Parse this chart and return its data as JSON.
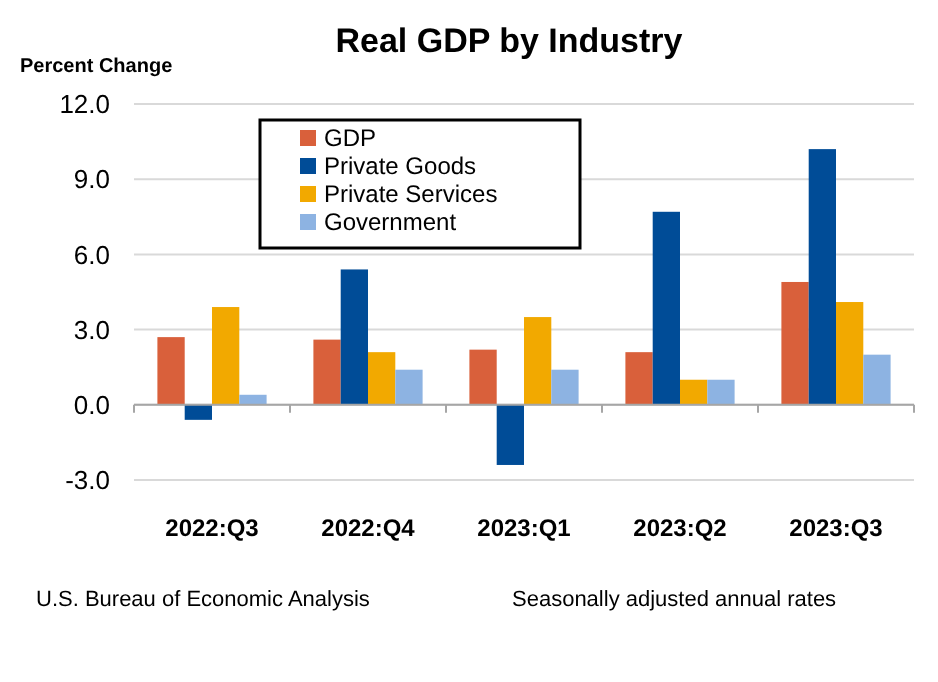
{
  "chart_data": {
    "type": "bar",
    "title": "Real GDP by Industry",
    "ylabel": "Percent Change",
    "categories": [
      "2022:Q3",
      "2022:Q4",
      "2023:Q1",
      "2023:Q2",
      "2023:Q3"
    ],
    "series": [
      {
        "name": "GDP",
        "color": "#d9603b",
        "values": [
          2.7,
          2.6,
          2.2,
          2.1,
          4.9
        ]
      },
      {
        "name": "Private Goods",
        "color": "#004c97",
        "values": [
          -0.6,
          5.4,
          -2.4,
          7.7,
          10.2
        ]
      },
      {
        "name": "Private Services",
        "color": "#f2a900",
        "values": [
          3.9,
          2.1,
          3.5,
          1.0,
          4.1
        ]
      },
      {
        "name": "Government",
        "color": "#8db3e2",
        "values": [
          0.4,
          1.4,
          1.4,
          1.0,
          2.0
        ]
      }
    ],
    "ylim": [
      -3,
      12
    ],
    "yticks": [
      {
        "value": -3,
        "label": "-3.0"
      },
      {
        "value": 0,
        "label": "0.0"
      },
      {
        "value": 3,
        "label": "3.0"
      },
      {
        "value": 6,
        "label": "6.0"
      },
      {
        "value": 9,
        "label": "9.0"
      },
      {
        "value": 12,
        "label": "12.0"
      }
    ],
    "grid": "y",
    "legend": "top",
    "annotations": [
      "U.S. Bureau of Economic Analysis",
      "Seasonally adjusted annual rates"
    ]
  }
}
